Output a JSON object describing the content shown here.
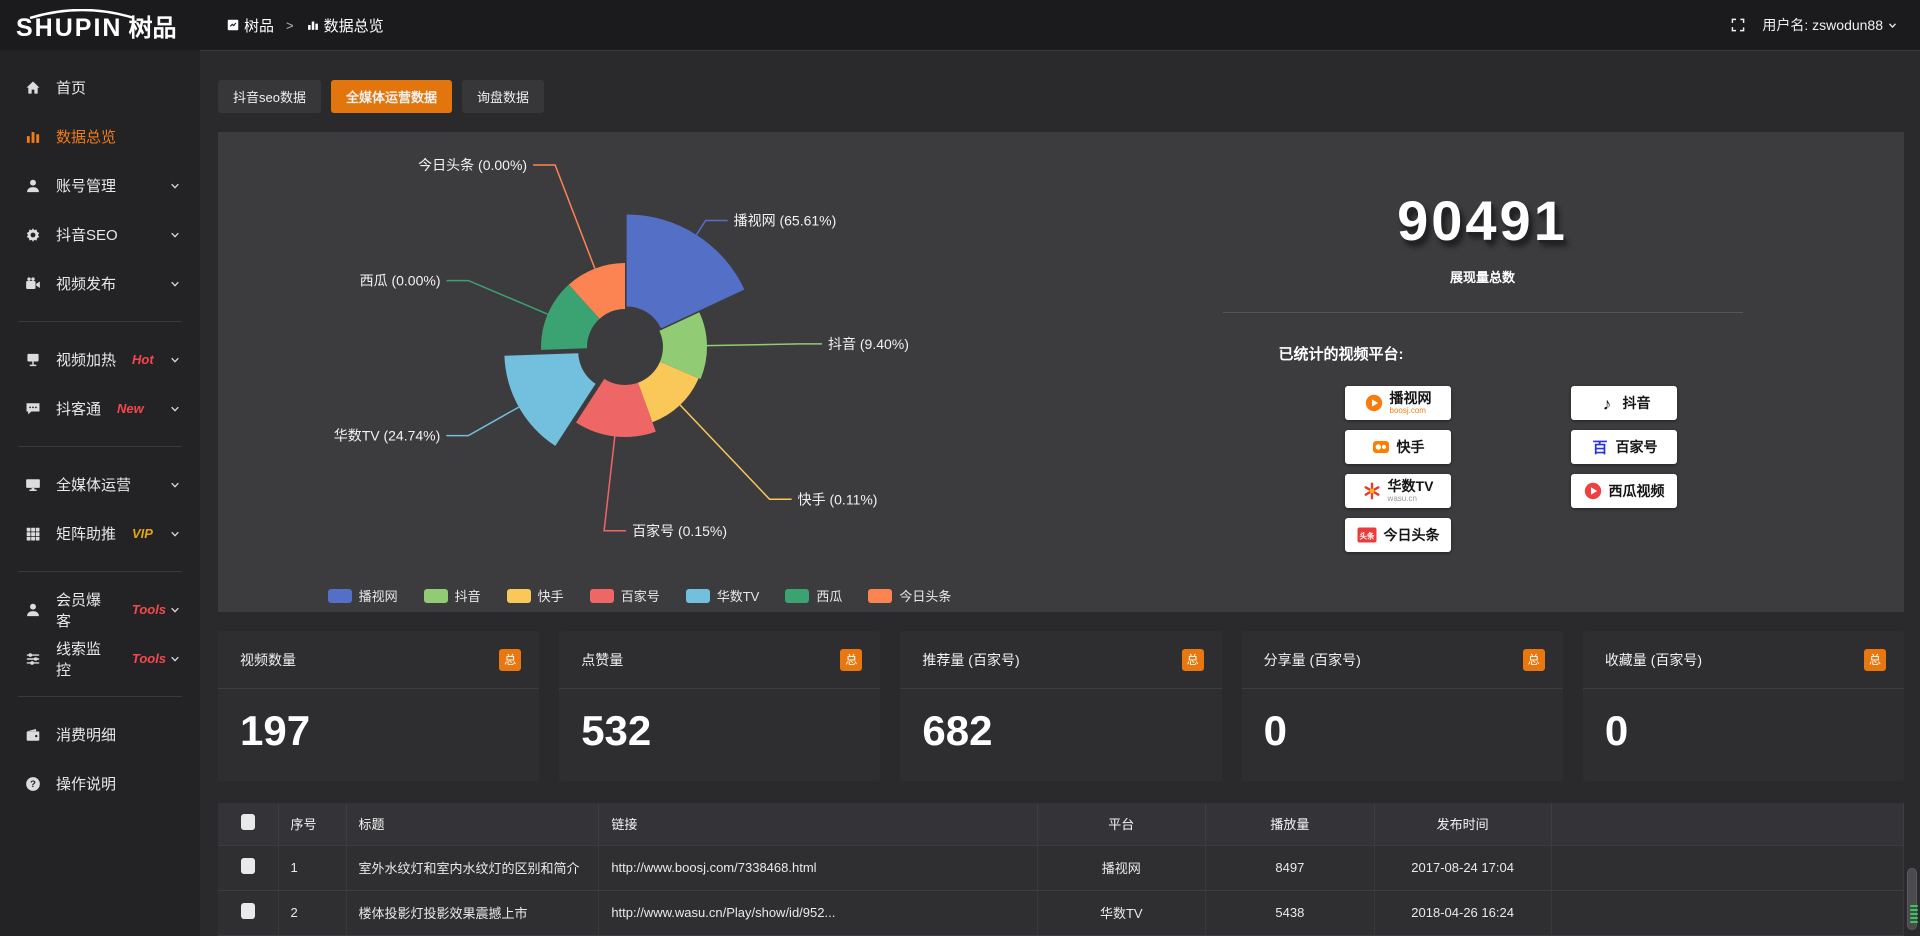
{
  "topbar": {
    "logo_main": "SHUPIN",
    "logo_suffix": "树品",
    "breadcrumb": [
      {
        "label": "树品",
        "icon": "square"
      },
      {
        "label": "数据总览",
        "icon": "minibars"
      }
    ],
    "breadcrumb_separator": ">",
    "user_label": "用户名: zswodun88"
  },
  "sidebar": {
    "items": [
      {
        "label": "首页",
        "icon": "home"
      },
      {
        "label": "数据总览",
        "icon": "chart",
        "active": true
      },
      {
        "label": "账号管理",
        "icon": "user",
        "chevron": true
      },
      {
        "label": "抖音SEO",
        "icon": "gear",
        "chevron": true
      },
      {
        "label": "视频发布",
        "icon": "video",
        "chevron": true
      },
      {
        "divider": true
      },
      {
        "label": "视频加热",
        "icon": "screen",
        "badge": "Hot",
        "badge_color": "#f5484d",
        "chevron": true
      },
      {
        "label": "抖客通",
        "icon": "chat",
        "badge": "New",
        "badge_color": "#f5484d",
        "chevron": true
      },
      {
        "divider": true
      },
      {
        "label": "全媒体运营",
        "icon": "monitor",
        "chevron": true
      },
      {
        "label": "矩阵助推",
        "icon": "grid",
        "badge": "VIP",
        "badge_color": "#e0a714",
        "chevron": true
      },
      {
        "divider": true
      },
      {
        "label": "会员爆客",
        "icon": "user",
        "badge": "Tools",
        "badge_color": "#f5484d",
        "chevron": true
      },
      {
        "label": "线索监控",
        "icon": "sliders",
        "badge": "Tools",
        "badge_color": "#f5484d",
        "chevron": true
      },
      {
        "divider": true
      },
      {
        "label": "消费明细",
        "icon": "wallet"
      },
      {
        "label": "操作说明",
        "icon": "question"
      }
    ]
  },
  "tabs": [
    {
      "label": "抖音seo数据"
    },
    {
      "label": "全媒体运营数据",
      "active": true
    },
    {
      "label": "询盘数据"
    }
  ],
  "chart_data": {
    "type": "pie",
    "variant": "rose-donut",
    "legend_position": "bottom",
    "inner_radius": 38,
    "slices": [
      {
        "name": "播视网",
        "pct": 65.61,
        "color": "#5470c6",
        "start": 0,
        "end": 65,
        "radius": 130,
        "explode": 3,
        "labelDist": 150
      },
      {
        "name": "抖音",
        "pct": 9.4,
        "color": "#91cc75",
        "start": 65,
        "end": 113,
        "radius": 82,
        "explode": 0,
        "labelDist": 175
      },
      {
        "name": "快手",
        "pct": 0.11,
        "color": "#fac858",
        "start": 113,
        "end": 160,
        "radius": 80,
        "explode": 0,
        "labelDist": 210
      },
      {
        "name": "百家号",
        "pct": 0.15,
        "color": "#ee6666",
        "start": 160,
        "end": 213,
        "radius": 90,
        "explode": 0,
        "labelDist": 185
      },
      {
        "name": "华数TV",
        "pct": 24.74,
        "color": "#73c0de",
        "start": 213,
        "end": 268,
        "radius": 112,
        "explode": 10,
        "labelDist": 180
      },
      {
        "name": "西瓜",
        "pct": 0.0,
        "color": "#3ba272",
        "start": 268,
        "end": 318,
        "radius": 84,
        "explode": 0,
        "labelDist": 170
      },
      {
        "name": "今日头条",
        "pct": 0.0,
        "color": "#fc8452",
        "start": 318,
        "end": 360,
        "radius": 84,
        "explode": 0,
        "labelDist": 195
      }
    ],
    "total": {
      "value": "90491",
      "label": "展现量总数"
    },
    "platforms_title": "已统计的视频平台:",
    "platforms_left": [
      {
        "name": "播视网",
        "sub": "boosj.com",
        "sub_color": "#f77c0b",
        "icon": "boosj"
      },
      {
        "name": "快手",
        "icon": "kuaishou"
      },
      {
        "name": "华数TV",
        "sub": "wasu.cn",
        "sub_color": "#9a9a9a",
        "icon": "wasu"
      },
      {
        "name": "今日头条",
        "icon": "toutiao"
      }
    ],
    "platforms_right": [
      {
        "name": "抖音",
        "icon": "douyin"
      },
      {
        "name": "百家号",
        "icon": "baijia"
      },
      {
        "name": "西瓜视频",
        "icon": "xigua"
      }
    ]
  },
  "stat_cards": [
    {
      "label": "视频数量",
      "badge": "总",
      "value": "197"
    },
    {
      "label": "点赞量",
      "badge": "总",
      "value": "532"
    },
    {
      "label": "推荐量 (百家号)",
      "badge": "总",
      "value": "682"
    },
    {
      "label": "分享量 (百家号)",
      "badge": "总",
      "value": "0"
    },
    {
      "label": "收藏量 (百家号)",
      "badge": "总",
      "value": "0"
    }
  ],
  "table": {
    "headers": [
      "序号",
      "标题",
      "链接",
      "平台",
      "播放量",
      "发布时间"
    ],
    "rows": [
      {
        "idx": "1",
        "title": "室外水纹灯和室内水纹灯的区别和简介",
        "link": "http://www.boosj.com/7338468.html",
        "platform": "播视网",
        "plays": "8497",
        "time": "2017-08-24 17:04"
      },
      {
        "idx": "2",
        "title": "楼体投影灯投影效果震撼上市",
        "link": "http://www.wasu.cn/Play/show/id/952...",
        "platform": "华数TV",
        "plays": "5438",
        "time": "2018-04-26 16:24"
      }
    ]
  }
}
